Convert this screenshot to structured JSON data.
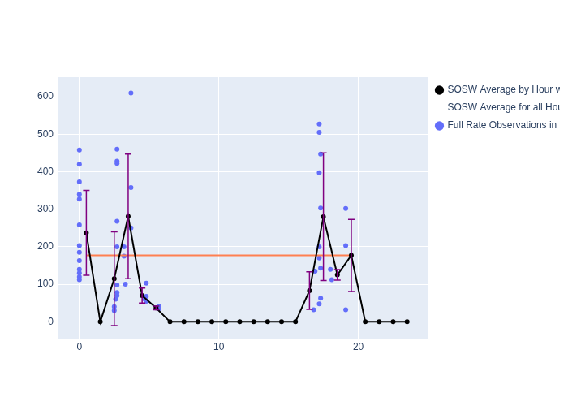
{
  "chart_data": {
    "type": "scatter",
    "xlim": [
      -1.5,
      25
    ],
    "xticks": [
      0,
      10,
      20
    ],
    "ylim": [
      -46,
      652
    ],
    "yticks": [
      0,
      100,
      200,
      300,
      400,
      500,
      600
    ],
    "grid": true,
    "legend": "right",
    "series": [
      {
        "name": "Full Rate Observations in a Normal Point",
        "type": "scatter",
        "color": "#636efa",
        "marker": "circle",
        "x": [
          0,
          0,
          0,
          0,
          0,
          0,
          0,
          0,
          0,
          0,
          0,
          0,
          0,
          2.7,
          2.7,
          2.7,
          2.7,
          2.7,
          2.7,
          2.7,
          2.7,
          2.6,
          2.5,
          2.5,
          3.2,
          3.2,
          3.3,
          3.7,
          3.7,
          3.7,
          4.8,
          4.8,
          4.7,
          4.8,
          5.7,
          5.7,
          17.2,
          17.2,
          17.3,
          17.2,
          17.3,
          17.2,
          17.2,
          17.3,
          17.3,
          17.2,
          16.8,
          16.9,
          18,
          18.1,
          19.1,
          19.1,
          19.1
        ],
        "values": [
          458,
          420,
          373,
          340,
          327,
          258,
          203,
          185,
          163,
          140,
          130,
          120,
          112,
          460,
          428,
          422,
          268,
          200,
          98,
          78,
          70,
          60,
          40,
          30,
          200,
          175,
          100,
          610,
          358,
          250,
          103,
          68,
          60,
          55,
          42,
          35,
          527,
          505,
          447,
          397,
          303,
          200,
          170,
          143,
          63,
          48,
          32,
          135,
          140,
          112,
          302,
          203,
          32
        ]
      },
      {
        "name": "SOSW Average by Hour with STD",
        "type": "line",
        "color": "#000000",
        "marker": "circle",
        "x": [
          0.5,
          1.5,
          2.5,
          3.5,
          4.5,
          5.5,
          6.5,
          7.5,
          8.5,
          9.5,
          10.5,
          11.5,
          12.5,
          13.5,
          14.5,
          15.5,
          16.5,
          17.5,
          18.5,
          19.5,
          20.5,
          21.5,
          22.5,
          23.5
        ],
        "values": [
          237,
          0,
          115,
          281,
          70,
          37,
          0,
          0,
          0,
          0,
          0,
          0,
          0,
          0,
          0,
          0,
          83,
          280,
          125,
          177,
          0,
          0,
          0,
          0
        ],
        "error": [
          113,
          0,
          125,
          166,
          20,
          5,
          0,
          0,
          0,
          0,
          0,
          0,
          0,
          0,
          0,
          0,
          50,
          170,
          14,
          96,
          0,
          0,
          0,
          0
        ]
      },
      {
        "name": "SOSW Average for all Hours",
        "type": "line",
        "color": "#ff7f50",
        "marker": "none",
        "x": [
          0.5,
          19.5
        ],
        "values": [
          177,
          177
        ]
      }
    ]
  }
}
